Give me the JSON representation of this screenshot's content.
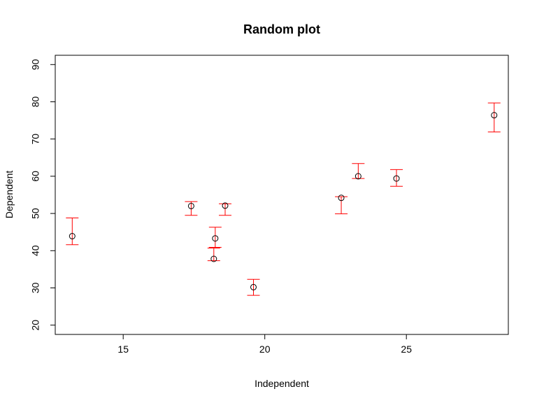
{
  "chart_data": {
    "type": "scatter",
    "title": "Random plot",
    "xlabel": "Independent",
    "ylabel": "Dependent",
    "xlim": [
      12.6,
      28.6
    ],
    "ylim": [
      17.5,
      92.5
    ],
    "xticks": [
      15,
      20,
      25
    ],
    "yticks": [
      20,
      30,
      40,
      50,
      60,
      70,
      80,
      90
    ],
    "x_axis_extent": [
      15,
      28
    ],
    "y_axis_extent": [
      20,
      90
    ],
    "grid": false,
    "point_color": "#000000",
    "error_bar_color": "#ff0000",
    "points": [
      {
        "x": 13.2,
        "y": 43.9,
        "lower": 41.6,
        "upper": 48.8
      },
      {
        "x": 17.4,
        "y": 52.0,
        "lower": 49.5,
        "upper": 53.2
      },
      {
        "x": 18.2,
        "y": 37.8,
        "lower": 37.3,
        "upper": 40.7
      },
      {
        "x": 18.25,
        "y": 43.3,
        "lower": 40.9,
        "upper": 46.3
      },
      {
        "x": 18.6,
        "y": 52.1,
        "lower": 49.5,
        "upper": 52.6
      },
      {
        "x": 19.6,
        "y": 30.2,
        "lower": 28.0,
        "upper": 32.3
      },
      {
        "x": 22.7,
        "y": 54.2,
        "lower": 49.9,
        "upper": 54.5
      },
      {
        "x": 23.3,
        "y": 60.0,
        "lower": 59.4,
        "upper": 63.4
      },
      {
        "x": 24.65,
        "y": 59.4,
        "lower": 57.3,
        "upper": 61.8
      },
      {
        "x": 28.1,
        "y": 76.4,
        "lower": 71.9,
        "upper": 79.7
      }
    ]
  }
}
